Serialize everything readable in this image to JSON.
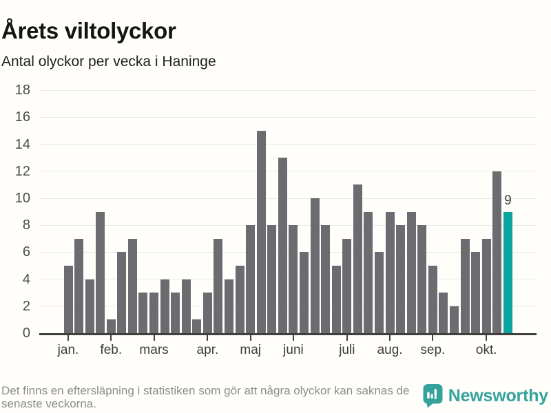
{
  "title": "Årets viltolyckor",
  "subtitle": "Antal olyckor per vecka i Haninge",
  "footer": {
    "note_lines": [
      "Det finns en eftersläpning i statistiken som gör att några olyckor kan saknas de",
      "senaste veckorna."
    ],
    "brand": "Newsworthy"
  },
  "colors": {
    "background": "#fffefa",
    "bar_gray": "#6c6b70",
    "bar_highlight_teal": "#0ba49e",
    "axis": "#3f3f3f",
    "gridline": "#e9e9e9",
    "brand_teal": "#35a29c",
    "footer_text": "#8c8c8c"
  },
  "icons": {
    "brand_mark": "newsworthy-speech-bubble-bar-chart-icon"
  },
  "chart_data": {
    "type": "bar",
    "title": "Årets viltolyckor",
    "subtitle": "Antal olyckor per vecka i Haninge",
    "x_unit": "vecka (week), jan–okt",
    "ylabel": "",
    "xlabel": "",
    "ylim": [
      0,
      18
    ],
    "grid": true,
    "legend_position": "none",
    "y_ticks": [
      0,
      2,
      4,
      6,
      8,
      10,
      12,
      14,
      16,
      18
    ],
    "values": [
      5,
      7,
      4,
      9,
      1,
      6,
      7,
      3,
      3,
      4,
      3,
      4,
      1,
      3,
      7,
      4,
      5,
      8,
      15,
      8,
      13,
      8,
      6,
      10,
      8,
      5,
      7,
      11,
      9,
      6,
      9,
      8,
      9,
      8,
      5,
      3,
      2,
      7,
      6,
      7,
      12,
      9
    ],
    "month_ticks": [
      {
        "label": "jan.",
        "week": 1
      },
      {
        "label": "feb.",
        "week": 5
      },
      {
        "label": "mars",
        "week": 9
      },
      {
        "label": "apr.",
        "week": 14
      },
      {
        "label": "maj",
        "week": 18
      },
      {
        "label": "juni",
        "week": 22
      },
      {
        "label": "juli",
        "week": 27
      },
      {
        "label": "aug.",
        "week": 31
      },
      {
        "label": "sep.",
        "week": 35
      },
      {
        "label": "okt.",
        "week": 40
      }
    ],
    "highlight": {
      "index": 41,
      "label": "9"
    }
  }
}
